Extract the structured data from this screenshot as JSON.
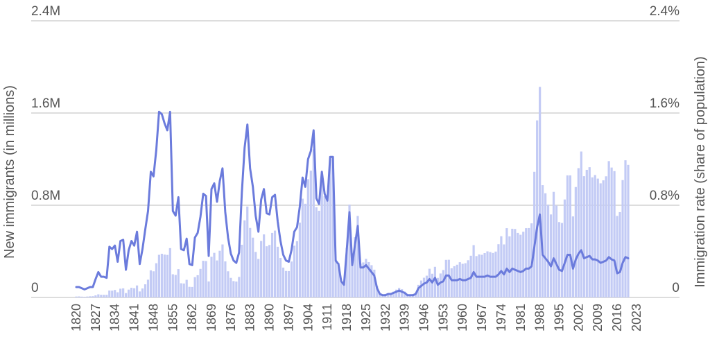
{
  "chart_data": {
    "type": "bar+line",
    "title": "",
    "ylabel_left": "New immigrants (in millions)",
    "ylabel_right": "Immigration rate (share of population)",
    "xlabel": "",
    "ylim_left": [
      0,
      2.4
    ],
    "ylim_right": [
      0,
      2.4
    ],
    "yticks_left": [
      "0",
      "0.8M",
      "1.6M",
      "2.4M"
    ],
    "yticks_right": [
      "0",
      "0.8%",
      "1.6%",
      "2.4%"
    ],
    "ytick_values": [
      0,
      0.8,
      1.6,
      2.4
    ],
    "xticks": [
      "1820",
      "1827",
      "1834",
      "1841",
      "1848",
      "1855",
      "1862",
      "1869",
      "1876",
      "1883",
      "1890",
      "1897",
      "1904",
      "1911",
      "1918",
      "1925",
      "1932",
      "1939",
      "1946",
      "1953",
      "1960",
      "1967",
      "1974",
      "1981",
      "1988",
      "1995",
      "2002",
      "2009",
      "2016",
      "2023"
    ],
    "grid": true,
    "legend": "none",
    "colors": {
      "bars": "#c3cbf5",
      "line": "#6b7bdc",
      "grid": "#dddddd",
      "text": "#555555"
    },
    "start_year": 1820,
    "series": [
      {
        "name": "New immigrants (millions)",
        "type": "bar",
        "values": [
          0.008,
          0.009,
          0.007,
          0.006,
          0.008,
          0.01,
          0.011,
          0.018,
          0.027,
          0.023,
          0.023,
          0.023,
          0.06,
          0.059,
          0.065,
          0.045,
          0.076,
          0.079,
          0.038,
          0.068,
          0.084,
          0.08,
          0.104,
          0.052,
          0.078,
          0.114,
          0.154,
          0.235,
          0.227,
          0.297,
          0.37,
          0.379,
          0.372,
          0.369,
          0.428,
          0.201,
          0.195,
          0.246,
          0.123,
          0.121,
          0.153,
          0.092,
          0.091,
          0.176,
          0.193,
          0.248,
          0.318,
          0.316,
          0.139,
          0.353,
          0.387,
          0.321,
          0.405,
          0.46,
          0.313,
          0.227,
          0.17,
          0.142,
          0.138,
          0.178,
          0.457,
          0.669,
          0.789,
          0.603,
          0.519,
          0.395,
          0.334,
          0.49,
          0.547,
          0.444,
          0.455,
          0.56,
          0.58,
          0.44,
          0.343,
          0.259,
          0.23,
          0.229,
          0.312,
          0.449,
          0.488,
          0.649,
          0.857,
          0.813,
          1.026,
          1.1,
          1.285,
          0.782,
          0.752,
          1.041,
          0.878,
          0.838,
          1.197,
          1.218,
          0.327,
          0.299,
          0.141,
          0.111,
          0.43,
          0.805,
          0.31,
          0.523,
          0.707,
          0.294,
          0.304,
          0.335,
          0.307,
          0.28,
          0.241,
          0.097,
          0.036,
          0.023,
          0.03,
          0.035,
          0.036,
          0.051,
          0.068,
          0.083,
          0.071,
          0.051,
          0.024,
          0.024,
          0.029,
          0.038,
          0.109,
          0.147,
          0.171,
          0.189,
          0.249,
          0.206,
          0.266,
          0.17,
          0.208,
          0.238,
          0.326,
          0.327,
          0.253,
          0.271,
          0.284,
          0.306,
          0.292,
          0.297,
          0.323,
          0.362,
          0.454,
          0.359,
          0.373,
          0.37,
          0.385,
          0.4,
          0.394,
          0.386,
          0.398,
          0.462,
          0.531,
          0.46,
          0.601,
          0.53,
          0.596,
          0.594,
          0.56,
          0.544,
          0.57,
          0.601,
          0.602,
          0.643,
          1.09,
          1.536,
          1.827,
          0.974,
          0.904,
          0.804,
          0.72,
          0.916,
          0.798,
          0.654,
          0.646,
          0.85,
          1.059,
          1.059,
          0.703,
          0.958,
          1.122,
          1.266,
          1.052,
          1.107,
          1.13,
          1.042,
          1.062,
          1.031,
          0.99,
          1.016,
          1.051,
          1.183,
          1.127,
          1.096,
          0.707,
          0.74,
          1.018,
          1.19,
          1.15
        ],
        "unit": "millions"
      },
      {
        "name": "Immigration rate (% of population)",
        "type": "line",
        "values": [
          0.09,
          0.09,
          0.08,
          0.07,
          0.08,
          0.09,
          0.09,
          0.16,
          0.22,
          0.18,
          0.18,
          0.17,
          0.44,
          0.42,
          0.45,
          0.31,
          0.49,
          0.5,
          0.24,
          0.41,
          0.49,
          0.45,
          0.57,
          0.29,
          0.42,
          0.59,
          0.75,
          1.09,
          1.05,
          1.28,
          1.61,
          1.59,
          1.51,
          1.45,
          1.61,
          0.75,
          0.71,
          0.87,
          0.42,
          0.41,
          0.51,
          0.29,
          0.28,
          0.52,
          0.56,
          0.7,
          0.9,
          0.88,
          0.36,
          0.94,
          0.99,
          0.83,
          1.01,
          1.12,
          0.74,
          0.52,
          0.38,
          0.32,
          0.3,
          0.39,
          0.91,
          1.3,
          1.5,
          1.12,
          0.96,
          0.71,
          0.57,
          0.85,
          0.94,
          0.73,
          0.72,
          0.87,
          0.89,
          0.66,
          0.49,
          0.37,
          0.32,
          0.31,
          0.41,
          0.57,
          0.61,
          0.79,
          1.04,
          0.96,
          1.2,
          1.27,
          1.45,
          0.86,
          0.81,
          1.09,
          0.9,
          0.84,
          1.22,
          1.22,
          0.32,
          0.29,
          0.14,
          0.11,
          0.4,
          0.74,
          0.28,
          0.46,
          0.62,
          0.26,
          0.26,
          0.28,
          0.25,
          0.22,
          0.19,
          0.08,
          0.03,
          0.02,
          0.02,
          0.03,
          0.03,
          0.04,
          0.05,
          0.06,
          0.05,
          0.04,
          0.02,
          0.02,
          0.02,
          0.03,
          0.08,
          0.1,
          0.12,
          0.13,
          0.16,
          0.13,
          0.17,
          0.11,
          0.13,
          0.14,
          0.19,
          0.19,
          0.15,
          0.15,
          0.15,
          0.16,
          0.15,
          0.15,
          0.16,
          0.17,
          0.22,
          0.18,
          0.18,
          0.18,
          0.18,
          0.19,
          0.18,
          0.18,
          0.18,
          0.2,
          0.23,
          0.2,
          0.25,
          0.22,
          0.25,
          0.24,
          0.23,
          0.22,
          0.23,
          0.25,
          0.25,
          0.27,
          0.44,
          0.61,
          0.72,
          0.37,
          0.34,
          0.31,
          0.27,
          0.34,
          0.29,
          0.24,
          0.23,
          0.3,
          0.37,
          0.37,
          0.25,
          0.33,
          0.38,
          0.41,
          0.34,
          0.35,
          0.36,
          0.33,
          0.33,
          0.32,
          0.3,
          0.31,
          0.32,
          0.35,
          0.33,
          0.32,
          0.21,
          0.22,
          0.3,
          0.35,
          0.34
        ],
        "unit": "percent"
      }
    ]
  }
}
